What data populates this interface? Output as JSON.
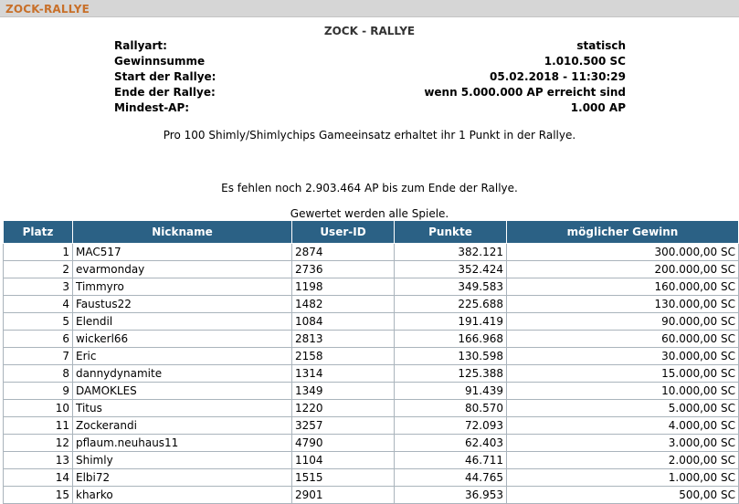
{
  "header": {
    "title": "ZOCK-RALLYE"
  },
  "main_title": "ZOCK - RALLYE",
  "info": [
    {
      "label": "Rallyart:",
      "value": "statisch"
    },
    {
      "label": "Gewinnsumme",
      "value": "1.010.500 SC"
    },
    {
      "label": "Start der Rallye:",
      "value": "05.02.2018 - 11:30:29"
    },
    {
      "label": "Ende der Rallye:",
      "value": "wenn 5.000.000 AP erreicht sind"
    },
    {
      "label": "Mindest-AP:",
      "value": "1.000 AP"
    }
  ],
  "notes": {
    "points_rule": "Pro 100 Shimly/Shimlychips Gameeinsatz erhaltet ihr 1 Punkt in der Rallye.",
    "remaining": "Es fehlen noch 2.903.464 AP bis zum Ende der Rallye.",
    "counted": "Gewertet werden alle Spiele."
  },
  "table": {
    "headers": [
      "Platz",
      "Nickname",
      "User-ID",
      "Punkte",
      "möglicher Gewinn"
    ],
    "rows": [
      [
        "1",
        "MAC517",
        "2874",
        "382.121",
        "300.000,00 SC"
      ],
      [
        "2",
        "evarmonday",
        "2736",
        "352.424",
        "200.000,00 SC"
      ],
      [
        "3",
        "Timmyro",
        "1198",
        "349.583",
        "160.000,00 SC"
      ],
      [
        "4",
        "Faustus22",
        "1482",
        "225.688",
        "130.000,00 SC"
      ],
      [
        "5",
        "Elendil",
        "1084",
        "191.419",
        "90.000,00 SC"
      ],
      [
        "6",
        "wickerl66",
        "2813",
        "166.968",
        "60.000,00 SC"
      ],
      [
        "7",
        "Eric",
        "2158",
        "130.598",
        "30.000,00 SC"
      ],
      [
        "8",
        "dannydynamite",
        "1314",
        "125.388",
        "15.000,00 SC"
      ],
      [
        "9",
        "DAMOKLES",
        "1349",
        "91.439",
        "10.000,00 SC"
      ],
      [
        "10",
        "Titus",
        "1220",
        "80.570",
        "5.000,00 SC"
      ],
      [
        "11",
        "Zockerandi",
        "3257",
        "72.093",
        "4.000,00 SC"
      ],
      [
        "12",
        "pflaum.neuhaus11",
        "4790",
        "62.403",
        "3.000,00 SC"
      ],
      [
        "13",
        "Shimly",
        "1104",
        "46.711",
        "2.000,00 SC"
      ],
      [
        "14",
        "Elbi72",
        "1515",
        "44.765",
        "1.000,00 SC"
      ],
      [
        "15",
        "kharko",
        "2901",
        "36.953",
        "500,00 SC"
      ]
    ]
  }
}
